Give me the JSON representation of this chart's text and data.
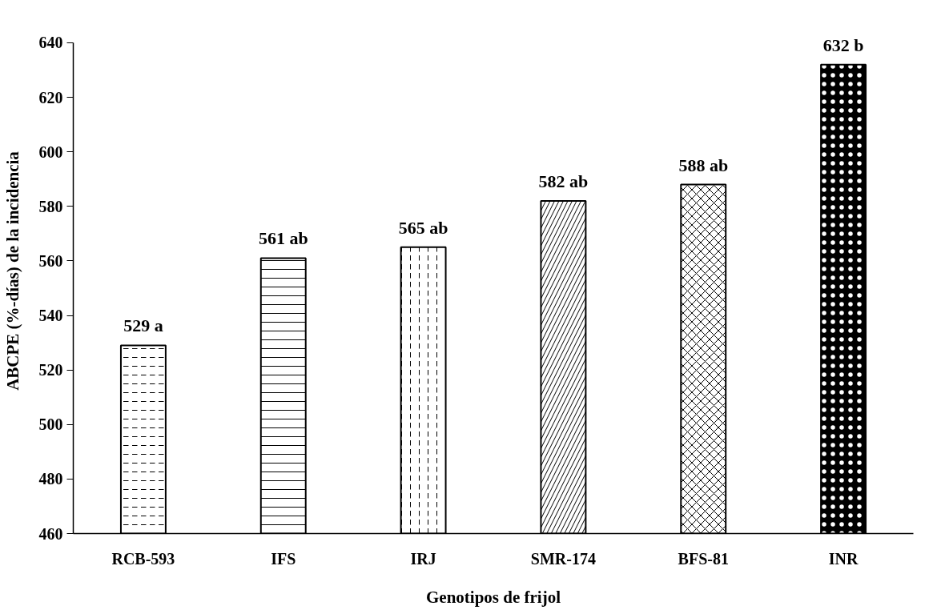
{
  "chart_data": {
    "type": "bar",
    "xlabel": "Genotipos de frijol",
    "ylabel": "ABCPE (%-días) de la incidencia",
    "categories": [
      "RCB-593",
      "IFS",
      "IRJ",
      "SMR-174",
      "BFS-81",
      "INR"
    ],
    "values": [
      529,
      561,
      565,
      582,
      588,
      632
    ],
    "value_labels": [
      "529 a",
      "561 ab",
      "565 ab",
      "582 ab",
      "588 ab",
      "632 b"
    ],
    "colors": [
      "#ffffff",
      "#ffffff",
      "#ffffff",
      "#ffffff",
      "#ffffff",
      "#000000"
    ],
    "ylim": [
      460,
      640
    ],
    "yticks": [
      460,
      480,
      500,
      520,
      540,
      560,
      580,
      600,
      620,
      640
    ],
    "grid": false
  }
}
